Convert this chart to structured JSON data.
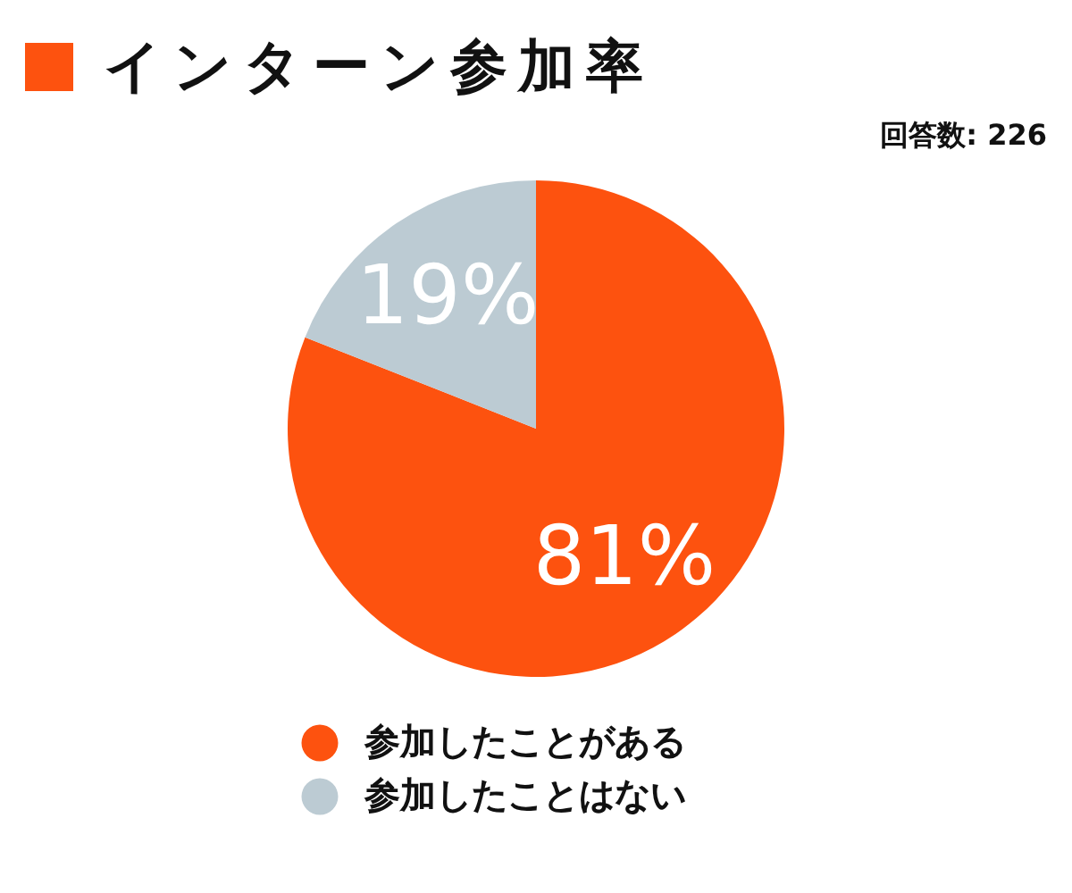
{
  "chart_data": {
    "type": "pie",
    "title": "インターン参加率",
    "annotations": [
      "回答数: 226"
    ],
    "categories": [
      "参加したことがある",
      "参加したことはない"
    ],
    "values": [
      81,
      19
    ],
    "value_labels": [
      "81%",
      "19%"
    ],
    "colors": [
      "#fd520f",
      "#bccbd3"
    ],
    "legend": "bottom"
  }
}
